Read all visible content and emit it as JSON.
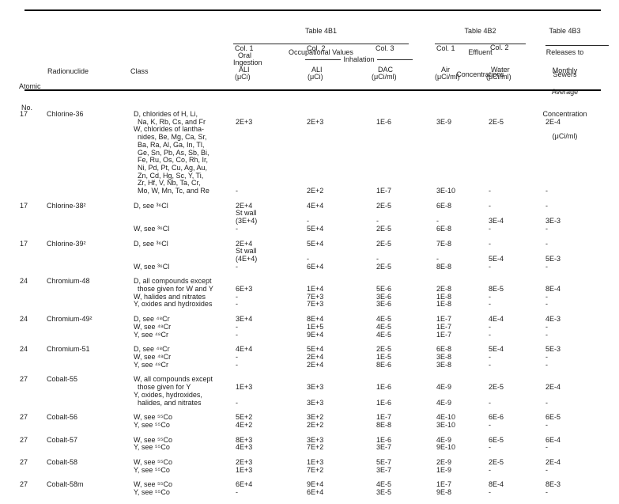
{
  "header": {
    "atomic_no_line1": "Atomic",
    "atomic_no_line2": "No.",
    "radionuclide": "Radionuclide",
    "class_label": "Class",
    "t4b1": {
      "title1": "Table 4B1",
      "title2": "Occupational Values",
      "col1_label": "Col. 1",
      "col1_sub1": "Oral",
      "col1_sub2": "Ingestion",
      "col1_name": "ALI",
      "col1_unit": "(μCi)",
      "col2_label": "Col. 2",
      "inhalation": "Inhalation",
      "col2_name": "ALI",
      "col2_unit": "(μCi)",
      "col3_label": "Col. 3",
      "col3_name": "DAC",
      "col3_unit": "(μCi/ml)"
    },
    "t4b2": {
      "title1": "Table 4B2",
      "title2": "Effluent",
      "title3": "Concentrations",
      "col1_label": "Col. 1",
      "col1_name": "Air",
      "col1_unit": "(μCi/ml)",
      "col2_label": "Col. 2",
      "col2_name": "Water",
      "col2_unit": "(μCi/ml)"
    },
    "t4b3": {
      "title1": "Table 4B3",
      "title2": "Releases to",
      "title3": "Sewers",
      "sub1": "Monthly",
      "sub2": "Average",
      "sub3": "Concentration",
      "sub4": "(μCi/ml)"
    }
  },
  "rows": [
    {
      "atomic_no": "17",
      "name": "Chlorine-36",
      "lines": [
        {
          "class": "D, chlorides of H, Li,",
          "vals": [
            "",
            "",
            "",
            "",
            "",
            ""
          ]
        },
        {
          "class": "  Na, K, Rb, Cs, and Fr",
          "vals": [
            "2E+3",
            "2E+3",
            "1E-6",
            "3E-9",
            "2E-5",
            "2E-4"
          ]
        },
        {
          "class": "W, chlorides of lantha-",
          "vals": [
            "",
            "",
            "",
            "",
            "",
            ""
          ]
        },
        {
          "class": "  nides, Be, Mg, Ca, Sr,",
          "vals": [
            "",
            "",
            "",
            "",
            "",
            ""
          ]
        },
        {
          "class": "  Ba, Ra, Al, Ga, In, Tl,",
          "vals": [
            "",
            "",
            "",
            "",
            "",
            ""
          ]
        },
        {
          "class": "  Ge, Sn, Pb, As, Sb, Bi,",
          "vals": [
            "",
            "",
            "",
            "",
            "",
            ""
          ]
        },
        {
          "class": "  Fe, Ru, Os, Co, Rh, Ir,",
          "vals": [
            "",
            "",
            "",
            "",
            "",
            ""
          ]
        },
        {
          "class": "  Ni, Pd, Pt, Cu, Ag, Au,",
          "vals": [
            "",
            "",
            "",
            "",
            "",
            ""
          ]
        },
        {
          "class": "  Zn, Cd, Hg, Sc, Y, Ti,",
          "vals": [
            "",
            "",
            "",
            "",
            "",
            ""
          ]
        },
        {
          "class": "  Zr, Hf, V, Nb, Ta, Cr,",
          "vals": [
            "",
            "",
            "",
            "",
            "",
            ""
          ]
        },
        {
          "class": "  Mo, W, Mn, Tc, and Re",
          "vals": [
            "-",
            "2E+2",
            "1E-7",
            "3E-10",
            "-",
            "-"
          ]
        }
      ]
    },
    {
      "atomic_no": "17",
      "name": "Chlorine-38²",
      "lines": [
        {
          "class": "D, see ³⁶Cl",
          "vals": [
            "2E+4",
            "4E+4",
            "2E-5",
            "6E-8",
            "-",
            "-"
          ]
        },
        {
          "class": "",
          "vals": [
            "St wall",
            "",
            "",
            "",
            "",
            ""
          ]
        },
        {
          "class": "",
          "vals": [
            "(3E+4)",
            "-",
            "-",
            "-",
            "3E-4",
            "3E-3"
          ]
        },
        {
          "class": "W, see ³⁶Cl",
          "vals": [
            "-",
            "5E+4",
            "2E-5",
            "6E-8",
            "-",
            "-"
          ]
        }
      ]
    },
    {
      "atomic_no": "17",
      "name": "Chlorine-39²",
      "lines": [
        {
          "class": "D, see ³⁶Cl",
          "vals": [
            "2E+4",
            "5E+4",
            "2E-5",
            "7E-8",
            "-",
            "-"
          ]
        },
        {
          "class": "",
          "vals": [
            "St wall",
            "",
            "",
            "",
            "",
            ""
          ]
        },
        {
          "class": "",
          "vals": [
            "(4E+4)",
            "-",
            "-",
            "-",
            "5E-4",
            "5E-3"
          ]
        },
        {
          "class": "W, see ³⁶Cl",
          "vals": [
            "-",
            "6E+4",
            "2E-5",
            "8E-8",
            "-",
            "-"
          ]
        }
      ]
    },
    {
      "atomic_no": "24",
      "name": "Chromium-48",
      "lines": [
        {
          "class": "D, all compounds except",
          "vals": [
            "",
            "",
            "",
            "",
            "",
            ""
          ]
        },
        {
          "class": "  those given for W and Y",
          "vals": [
            "6E+3",
            "1E+4",
            "5E-6",
            "2E-8",
            "8E-5",
            "8E-4"
          ]
        },
        {
          "class": "W, halides and nitrates",
          "vals": [
            "-",
            "7E+3",
            "3E-6",
            "1E-8",
            "-",
            "-"
          ]
        },
        {
          "class": "Y, oxides and hydroxides",
          "vals": [
            "-",
            "7E+3",
            "3E-6",
            "1E-8",
            "-",
            "-"
          ]
        }
      ]
    },
    {
      "atomic_no": "24",
      "name": "Chromium-49²",
      "lines": [
        {
          "class": "D, see ⁴⁸Cr",
          "vals": [
            "3E+4",
            "8E+4",
            "4E-5",
            "1E-7",
            "4E-4",
            "4E-3"
          ]
        },
        {
          "class": "W, see ⁴⁸Cr",
          "vals": [
            "-",
            "1E+5",
            "4E-5",
            "1E-7",
            "-",
            "-"
          ]
        },
        {
          "class": "Y, see ⁴⁸Cr",
          "vals": [
            "-",
            "9E+4",
            "4E-5",
            "1E-7",
            "-",
            "-"
          ]
        }
      ]
    },
    {
      "atomic_no": "24",
      "name": "Chromium-51",
      "lines": [
        {
          "class": "D, see ⁴⁸Cr",
          "vals": [
            "4E+4",
            "5E+4",
            "2E-5",
            "6E-8",
            "5E-4",
            "5E-3"
          ]
        },
        {
          "class": "W, see ⁴⁸Cr",
          "vals": [
            "-",
            "2E+4",
            "1E-5",
            "3E-8",
            "-",
            "-"
          ]
        },
        {
          "class": "Y, see ⁴⁸Cr",
          "vals": [
            "-",
            "2E+4",
            "8E-6",
            "3E-8",
            "-",
            "-"
          ]
        }
      ]
    },
    {
      "atomic_no": "27",
      "name": "Cobalt-55",
      "lines": [
        {
          "class": "W, all compounds except",
          "vals": [
            "",
            "",
            "",
            "",
            "",
            ""
          ]
        },
        {
          "class": "  those given for Y",
          "vals": [
            "1E+3",
            "3E+3",
            "1E-6",
            "4E-9",
            "2E-5",
            "2E-4"
          ]
        },
        {
          "class": "Y, oxides, hydroxides,",
          "vals": [
            "",
            "",
            "",
            "",
            "",
            ""
          ]
        },
        {
          "class": "  halides, and nitrates",
          "vals": [
            "-",
            "3E+3",
            "1E-6",
            "4E-9",
            "-",
            "-"
          ]
        }
      ]
    },
    {
      "atomic_no": "27",
      "name": "Cobalt-56",
      "lines": [
        {
          "class": "W, see ⁵⁵Co",
          "vals": [
            "5E+2",
            "3E+2",
            "1E-7",
            "4E-10",
            "6E-6",
            "6E-5"
          ]
        },
        {
          "class": "Y, see ⁵⁵Co",
          "vals": [
            "4E+2",
            "2E+2",
            "8E-8",
            "3E-10",
            "-",
            "-"
          ]
        }
      ]
    },
    {
      "atomic_no": "27",
      "name": "Cobalt-57",
      "lines": [
        {
          "class": "W, see ⁵⁵Co",
          "vals": [
            "8E+3",
            "3E+3",
            "1E-6",
            "4E-9",
            "6E-5",
            "6E-4"
          ]
        },
        {
          "class": "Y, see ⁵⁵Co",
          "vals": [
            "4E+3",
            "7E+2",
            "3E-7",
            "9E-10",
            "-",
            "-"
          ]
        }
      ]
    },
    {
      "atomic_no": "27",
      "name": "Cobalt-58",
      "lines": [
        {
          "class": "W, see ⁵⁵Co",
          "vals": [
            "2E+3",
            "1E+3",
            "5E-7",
            "2E-9",
            "2E-5",
            "2E-4"
          ]
        },
        {
          "class": "Y, see ⁵⁵Co",
          "vals": [
            "1E+3",
            "7E+2",
            "3E-7",
            "1E-9",
            "-",
            "-"
          ]
        }
      ]
    },
    {
      "atomic_no": "27",
      "name": "Cobalt-58m",
      "lines": [
        {
          "class": "W, see ⁵⁵Co",
          "vals": [
            "6E+4",
            "9E+4",
            "4E-5",
            "1E-7",
            "8E-4",
            "8E-3"
          ]
        },
        {
          "class": "Y, see ⁵⁵Co",
          "vals": [
            "-",
            "6E+4",
            "3E-5",
            "9E-8",
            "-",
            "-"
          ]
        }
      ]
    }
  ]
}
